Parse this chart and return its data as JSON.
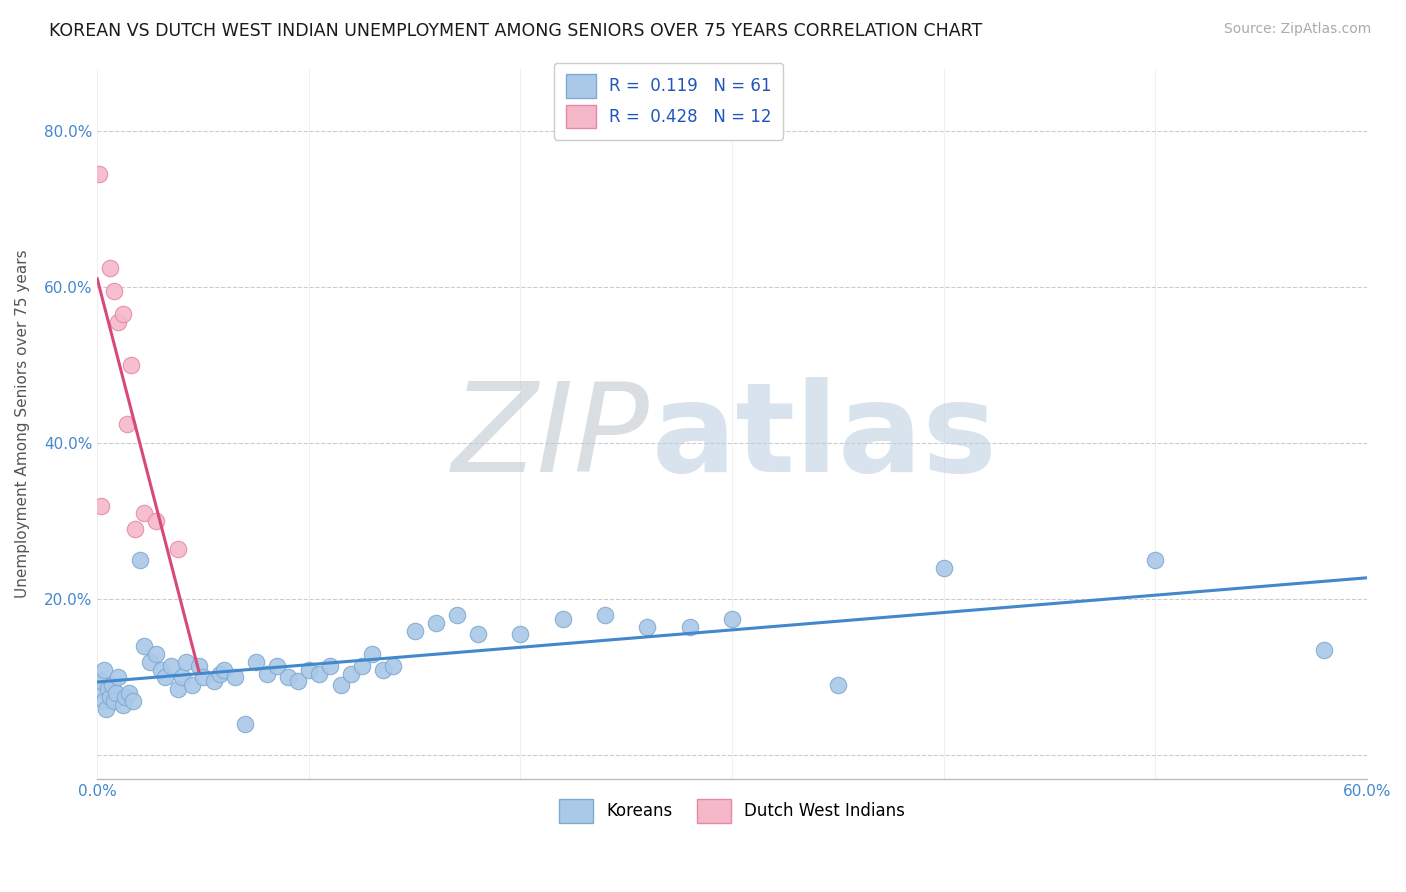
{
  "title": "KOREAN VS DUTCH WEST INDIAN UNEMPLOYMENT AMONG SENIORS OVER 75 YEARS CORRELATION CHART",
  "source": "Source: ZipAtlas.com",
  "ylabel": "Unemployment Among Seniors over 75 years",
  "xlim": [
    0.0,
    0.6
  ],
  "ylim": [
    -0.03,
    0.88
  ],
  "yticks": [
    0.0,
    0.2,
    0.4,
    0.6,
    0.8
  ],
  "ytick_labels": [
    "",
    "20.0%",
    "40.0%",
    "60.0%",
    "80.0%"
  ],
  "xticks": [
    0.0,
    0.1,
    0.2,
    0.3,
    0.4,
    0.5,
    0.6
  ],
  "korean_color": "#aac8e8",
  "korean_edge": "#80aad0",
  "dwi_color": "#f5b8c8",
  "dwi_edge": "#e888a8",
  "trendline_korean": "#4488cc",
  "trendline_dwi": "#d84878",
  "R_korean": 0.119,
  "N_korean": 61,
  "R_dwi": 0.428,
  "N_dwi": 12,
  "watermark_zip_color": "#c0c8d0",
  "watermark_atlas_color": "#b8cce0",
  "background": "#ffffff",
  "grid_color": "#cccccc",
  "korean_x": [
    0.001,
    0.002,
    0.003,
    0.003,
    0.004,
    0.005,
    0.006,
    0.007,
    0.008,
    0.009,
    0.01,
    0.012,
    0.013,
    0.015,
    0.017,
    0.02,
    0.022,
    0.025,
    0.028,
    0.03,
    0.032,
    0.035,
    0.038,
    0.04,
    0.042,
    0.045,
    0.048,
    0.05,
    0.055,
    0.058,
    0.06,
    0.065,
    0.07,
    0.075,
    0.08,
    0.085,
    0.09,
    0.095,
    0.1,
    0.105,
    0.11,
    0.115,
    0.12,
    0.125,
    0.13,
    0.135,
    0.14,
    0.15,
    0.16,
    0.17,
    0.18,
    0.2,
    0.22,
    0.24,
    0.26,
    0.28,
    0.3,
    0.35,
    0.4,
    0.5,
    0.58
  ],
  "korean_y": [
    0.085,
    0.095,
    0.07,
    0.11,
    0.06,
    0.085,
    0.075,
    0.09,
    0.07,
    0.08,
    0.1,
    0.065,
    0.075,
    0.08,
    0.07,
    0.25,
    0.14,
    0.12,
    0.13,
    0.11,
    0.1,
    0.115,
    0.085,
    0.1,
    0.12,
    0.09,
    0.115,
    0.1,
    0.095,
    0.105,
    0.11,
    0.1,
    0.04,
    0.12,
    0.105,
    0.115,
    0.1,
    0.095,
    0.11,
    0.105,
    0.115,
    0.09,
    0.105,
    0.115,
    0.13,
    0.11,
    0.115,
    0.16,
    0.17,
    0.18,
    0.155,
    0.155,
    0.175,
    0.18,
    0.165,
    0.165,
    0.175,
    0.09,
    0.24,
    0.25,
    0.135
  ],
  "dwi_x": [
    0.001,
    0.002,
    0.006,
    0.008,
    0.01,
    0.012,
    0.014,
    0.016,
    0.018,
    0.022,
    0.028,
    0.038
  ],
  "dwi_y": [
    0.745,
    0.32,
    0.625,
    0.595,
    0.555,
    0.565,
    0.425,
    0.5,
    0.29,
    0.31,
    0.3,
    0.265
  ]
}
